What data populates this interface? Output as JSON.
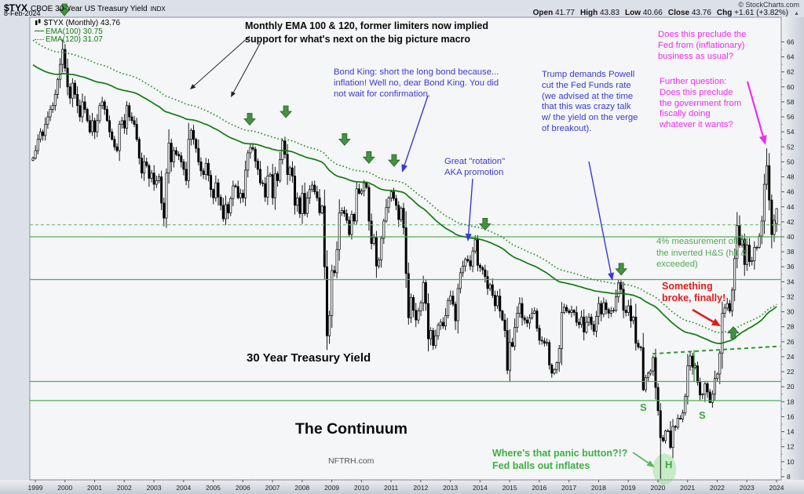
{
  "header": {
    "symbol": "$TYX",
    "name": "CBOE 30-Year US Treasury Yield",
    "exchange": "INDX",
    "date": "8-Feb-2024",
    "copyright": "© StockCharts.com",
    "quote": {
      "open_label": "Open",
      "open": "41.77",
      "high_label": "High",
      "high": "43.83",
      "low_label": "Low",
      "low": "40.66",
      "close_label": "Close",
      "close": "43.76",
      "chg_label": "Chg",
      "chg": "+1.61 (+3.82%)",
      "direction_glyph": "▲"
    }
  },
  "legend": {
    "main": "$TYX (Monthly) 43.76",
    "ema100": "EMA(100) 30.75",
    "ema120": "EMA(120) 31.07"
  },
  "annotations": {
    "ema_note": "Monthly EMA 100 & 120, former limiters now implied\nsupport for what's next on the big picture macro",
    "bond_king": "Bond King: short the long bond because...\ninflation! Well no, dear Bond King. You did\nnot wait for confirmation.",
    "trump": "Trump demands Powell\ncut the Fed Funds rate\n(we advised at the time\nthat this was crazy talk\nw/ the yield on the verge\nof breakout).",
    "rotation": "Great \"rotation\"\nAKA promotion",
    "fed_preclude": "Does this preclude the\nFed from (inflationary)\nbusiness as usual?",
    "further_question": "Further question:\nDoes this preclude\nthe government from\nfiscally doing\nwhatever it wants?",
    "pct4": "4% measurement off of\nthe inverted H&S (hit &\nexceeded)",
    "broke": "Something\nbroke, finally!",
    "panic": "Where's that panic button?!?\nFed balls out inflates"
  },
  "chart_labels": {
    "series_label": "30 Year Treasury Yield",
    "continuum": "The Continuum",
    "watermark": "NFTRH.com",
    "s1": "S",
    "s2": "S",
    "h": "H"
  },
  "chart_data": {
    "type": "candlestick",
    "title": "$TYX CBOE 30-Year US Treasury Yield (Monthly)",
    "x_start": "1999-01",
    "x_axis_years": [
      1999,
      2000,
      2001,
      2002,
      2003,
      2004,
      2005,
      2006,
      2007,
      2008,
      2009,
      2010,
      2011,
      2012,
      2013,
      2014,
      2015,
      2016,
      2017,
      2018,
      2019,
      2020,
      2021,
      2022,
      2023,
      2024
    ],
    "y_axis": {
      "min": 8,
      "max": 66,
      "step": 2
    },
    "monthly_closes": [
      [
        50.5,
        51.5,
        53,
        54,
        53.5,
        55,
        56,
        57,
        57.5,
        59,
        61,
        63
      ],
      [
        65,
        62.5,
        60,
        58.5,
        60.5,
        59,
        57.5,
        56,
        58,
        57,
        55.5,
        54
      ],
      [
        55.5,
        54,
        55.5,
        57.5,
        58,
        57,
        55.5,
        54,
        53,
        52,
        51.5,
        55
      ],
      [
        55.5,
        54.5,
        57.5,
        56,
        55.5,
        55,
        53,
        50.5,
        48.5,
        50,
        49.5,
        47.8
      ],
      [
        48.5,
        47,
        47.5,
        48,
        44.5,
        42.5,
        48.5,
        52.5,
        50,
        51.5,
        51,
        50.8
      ],
      [
        50,
        49,
        47.5,
        53,
        54.2,
        53,
        51.8,
        50,
        48.8,
        48.3,
        49.8,
        48.2
      ],
      [
        46.3,
        45.2,
        47.2,
        45.3,
        44.2,
        42.4,
        44.3,
        43.2,
        45.1,
        46.8,
        46.7,
        45.2
      ],
      [
        45.8,
        45.2,
        48.9,
        51.2,
        51.9,
        51.7,
        50.1,
        49,
        47.2,
        47.1,
        45.3,
        48.1
      ],
      [
        48.3,
        45.2,
        48.4,
        47.5,
        50.3,
        52.8,
        51,
        48.3,
        49.2,
        48.1,
        44.2,
        45.2
      ],
      [
        43.1,
        45.8,
        43.1,
        45.2,
        46.3,
        46.9,
        46,
        45.2,
        43.2,
        44.1,
        36,
        26.8
      ],
      [
        29.5,
        35.5,
        35.2,
        38.3,
        43.2,
        43.5,
        43.1,
        42.2,
        40.3,
        43,
        42.1,
        46.4
      ],
      [
        45.8,
        46.1,
        47.2,
        46.6,
        42.1,
        39.1,
        39.9,
        36.1,
        36.9,
        39.8,
        42.1,
        43.9
      ],
      [
        45.2,
        46,
        45.1,
        44.2,
        42.3,
        43.8,
        41.2,
        35.1,
        29.2,
        31.9,
        30.2,
        28.9
      ],
      [
        30.1,
        31.2,
        33.9,
        31.1,
        26.4,
        27.5,
        25.5,
        26.8,
        28.2,
        28.6,
        28.1,
        29.5
      ],
      [
        31.5,
        32.1,
        31,
        28.8,
        33.1,
        35.2,
        36.1,
        37,
        36.8,
        36.1,
        38.1,
        39.6
      ],
      [
        36.2,
        35.9,
        35.6,
        34.7,
        33.1,
        33.6,
        32.2,
        30.8,
        32.1,
        30.1,
        28.9,
        27.5
      ],
      [
        22.2,
        25.9,
        25.4,
        27.9,
        29.8,
        31.1,
        29.2,
        28.9,
        28.5,
        29.2,
        29.8,
        30.1
      ],
      [
        27.8,
        26.2,
        26.1,
        25.8,
        25.9,
        22.9,
        21.8,
        22.3,
        23.2,
        25.1,
        29.9,
        30.6
      ],
      [
        30.1,
        29.9,
        30.2,
        29.9,
        28.6,
        28.3,
        29.3,
        27.3,
        28.6,
        29.3,
        28.3,
        27.4
      ],
      [
        29.4,
        31.1,
        29.7,
        31.2,
        30.3,
        29.8,
        30.1,
        30.2,
        32,
        33.9,
        33,
        30.2
      ],
      [
        29.9,
        30.8,
        28.8,
        29.3,
        25.8,
        25.3,
        25.2,
        19.6,
        21.2,
        21.8,
        22.1,
        23.9
      ],
      [
        19.9,
        16.8,
        13.2,
        12.8,
        14.1,
        14.1,
        11.9,
        14.7,
        14.6,
        15.8,
        15.7,
        16.5
      ],
      [
        18.7,
        22.8,
        24.1,
        22.6,
        22.8,
        20.6,
        18.9,
        19,
        20.4,
        19.3,
        17.9,
        19
      ],
      [
        21.1,
        21.7,
        24.5,
        29.8,
        30.5,
        31.1,
        30.1,
        32.9,
        37.1,
        41.5,
        38.9,
        39.7
      ],
      [
        36.3,
        38.9,
        36.7,
        36.8,
        38.6,
        38.6,
        40.1,
        42.1,
        47,
        49.5,
        44.9,
        40.3
      ],
      [
        42.2,
        43.76
      ]
    ],
    "overrides": [
      {
        "i": 12,
        "high": 66.3
      },
      {
        "i": 53,
        "low": 41.4
      },
      {
        "i": 119,
        "low": 24.9
      },
      {
        "i": 210,
        "low": 21.2
      },
      {
        "i": 247,
        "low": 19.4
      },
      {
        "i": 254,
        "low": 7.7
      },
      {
        "i": 274,
        "low": 17.8
      },
      {
        "i": 297,
        "high": 51.8
      },
      {
        "i": 301,
        "open": 41.77,
        "high": 43.83,
        "low": 40.66,
        "close": 43.76
      }
    ],
    "emas": [
      {
        "period": 100,
        "seed": 63.2,
        "style": "solid",
        "color": "#117a11",
        "label_value": 30.75
      },
      {
        "period": 120,
        "seed": 66.5,
        "style": "dotted",
        "color": "#2b8f2b",
        "label_value": 31.07
      }
    ],
    "levels": [
      {
        "value": 41.6,
        "style": "dashed"
      },
      {
        "value": 40.0,
        "style": "solid"
      },
      {
        "value": 34.3,
        "style": "solid"
      },
      {
        "value": 20.7,
        "style": "solid"
      },
      {
        "value": 18.15,
        "style": "solid"
      }
    ],
    "neckline": {
      "from": [
        2019.9,
        24.4
      ],
      "to": [
        2024.2,
        25.4
      ]
    },
    "measure_line": {
      "year": 2021.3,
      "v1": 20.7,
      "v2": 24.9
    },
    "head_ellipse": {
      "year": 2020.3,
      "value": 9.0
    },
    "markers": [
      {
        "dir": "down",
        "year": 2000.06,
        "value": 69.5
      },
      {
        "dir": "down",
        "year": 2006.31,
        "value": 54.9
      },
      {
        "dir": "down",
        "year": 2007.53,
        "value": 55.9
      },
      {
        "dir": "down",
        "year": 2009.51,
        "value": 52.2
      },
      {
        "dir": "down",
        "year": 2010.33,
        "value": 49.8
      },
      {
        "dir": "down",
        "year": 2011.18,
        "value": 49.4
      },
      {
        "dir": "down",
        "year": 2014.25,
        "value": 40.9
      },
      {
        "dir": "down",
        "year": 2018.84,
        "value": 34.9
      },
      {
        "dir": "up",
        "year": 2022.62,
        "value": 28.0
      }
    ]
  }
}
